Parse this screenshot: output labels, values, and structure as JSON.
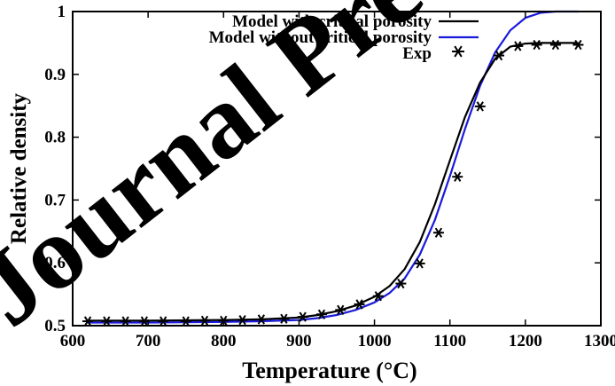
{
  "watermark": "Journal Pre-proof",
  "chart_data": {
    "type": "line",
    "title": "",
    "xlabel": "Temperature (°C)",
    "ylabel": "Relative density",
    "xlim": [
      600,
      1300
    ],
    "ylim": [
      0.5,
      1.0
    ],
    "xticks": [
      600,
      700,
      800,
      900,
      1000,
      1100,
      1200,
      1300
    ],
    "yticks": [
      0.5,
      0.6,
      0.7,
      0.8,
      0.9,
      1.0
    ],
    "ytick_labels": [
      "0.5",
      "0.6",
      "0.7",
      "0.8",
      "0.9",
      "1"
    ],
    "grid": false,
    "legend_position": "top-right",
    "series": [
      {
        "name": "Model with critical porosity",
        "style": "line",
        "color": "#000000",
        "x": [
          620,
          700,
          800,
          850,
          900,
          925,
          950,
          975,
          1000,
          1020,
          1040,
          1060,
          1080,
          1100,
          1120,
          1140,
          1160,
          1180,
          1200,
          1220,
          1240,
          1270
        ],
        "y": [
          0.508,
          0.508,
          0.509,
          0.51,
          0.513,
          0.517,
          0.523,
          0.532,
          0.546,
          0.563,
          0.59,
          0.633,
          0.693,
          0.763,
          0.832,
          0.887,
          0.925,
          0.944,
          0.949,
          0.95,
          0.95,
          0.95
        ]
      },
      {
        "name": "Model without critical porosity",
        "style": "line",
        "color": "#1a1adb",
        "x": [
          620,
          700,
          800,
          850,
          900,
          925,
          950,
          975,
          1000,
          1020,
          1040,
          1060,
          1080,
          1100,
          1120,
          1140,
          1160,
          1180,
          1200,
          1220,
          1240,
          1260,
          1270
        ],
        "y": [
          0.505,
          0.505,
          0.506,
          0.507,
          0.509,
          0.512,
          0.517,
          0.525,
          0.537,
          0.552,
          0.575,
          0.613,
          0.668,
          0.738,
          0.813,
          0.882,
          0.935,
          0.97,
          0.99,
          0.998,
          1.0,
          1.0,
          1.0
        ]
      },
      {
        "name": "Exp",
        "style": "marker",
        "marker": "asterisk",
        "color": "#000000",
        "x": [
          620,
          645,
          670,
          695,
          720,
          750,
          775,
          800,
          825,
          850,
          880,
          905,
          930,
          955,
          980,
          1005,
          1035,
          1060,
          1085,
          1110,
          1140,
          1165,
          1190,
          1215,
          1240,
          1270
        ],
        "y": [
          0.507,
          0.507,
          0.507,
          0.507,
          0.507,
          0.507,
          0.508,
          0.508,
          0.509,
          0.51,
          0.511,
          0.514,
          0.518,
          0.525,
          0.534,
          0.547,
          0.567,
          0.599,
          0.648,
          0.737,
          0.849,
          0.93,
          0.945,
          0.947,
          0.947,
          0.947
        ]
      }
    ]
  }
}
